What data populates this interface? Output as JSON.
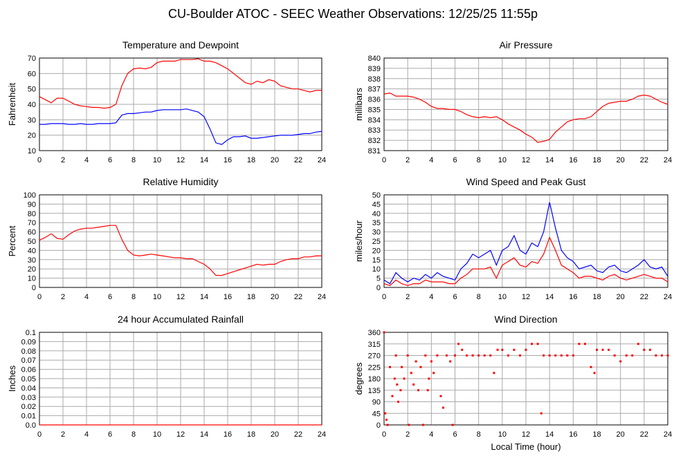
{
  "title": "CU-Boulder ATOC - SEEC Weather Observations: 12/25/25 11:55p",
  "chart_data": [
    {
      "type": "line",
      "title": "Temperature and Dewpoint",
      "ylabel": "Fahrenheit",
      "xlim": [
        0,
        24
      ],
      "xticks": [
        0,
        2,
        4,
        6,
        8,
        10,
        12,
        14,
        16,
        18,
        20,
        22,
        24
      ],
      "ylim": [
        10,
        70
      ],
      "yticks": [
        10,
        20,
        30,
        40,
        50,
        60,
        70
      ],
      "grid": true,
      "x": [
        0,
        0.5,
        1,
        1.5,
        2,
        2.5,
        3,
        3.5,
        4,
        4.5,
        5,
        5.5,
        6,
        6.5,
        7,
        7.5,
        8,
        8.5,
        9,
        9.5,
        10,
        10.5,
        11,
        11.5,
        12,
        12.5,
        13,
        13.5,
        14,
        14.5,
        15,
        15.5,
        16,
        16.5,
        17,
        17.5,
        18,
        18.5,
        19,
        19.5,
        20,
        20.5,
        21,
        21.5,
        22,
        22.5,
        23,
        23.5,
        24
      ],
      "series": [
        {
          "color": "#ff0000",
          "values": [
            45,
            43,
            41,
            44,
            44,
            42,
            40,
            39,
            38.5,
            38,
            38,
            37.5,
            38,
            40,
            52,
            60,
            63,
            63.5,
            63,
            64,
            67,
            68,
            68,
            68,
            69,
            69,
            69,
            69.5,
            68,
            68,
            67,
            65,
            63,
            60,
            57,
            54,
            53,
            55,
            54,
            56,
            55,
            52,
            51,
            50,
            50,
            49,
            48,
            49,
            49
          ]
        },
        {
          "color": "#0000ff",
          "values": [
            27,
            27,
            27.5,
            27.5,
            27.5,
            27,
            27,
            27.5,
            27,
            27,
            27.5,
            27.5,
            27.5,
            28,
            33,
            34,
            34,
            34.5,
            35,
            35,
            36,
            36.5,
            36.5,
            36.5,
            36.5,
            37,
            36,
            35,
            32,
            24,
            15,
            14,
            17,
            19,
            19,
            19.5,
            18,
            18,
            18.5,
            19,
            19.5,
            20,
            20,
            20,
            20.5,
            21,
            21,
            22,
            22.5
          ]
        }
      ]
    },
    {
      "type": "line",
      "title": "Air Pressure",
      "ylabel": "millibars",
      "xlim": [
        0,
        24
      ],
      "xticks": [
        0,
        2,
        4,
        6,
        8,
        10,
        12,
        14,
        16,
        18,
        20,
        22,
        24
      ],
      "ylim": [
        831,
        840
      ],
      "yticks": [
        831,
        832,
        833,
        834,
        835,
        836,
        837,
        838,
        839,
        840
      ],
      "grid": true,
      "x": [
        0,
        0.5,
        1,
        1.5,
        2,
        2.5,
        3,
        3.5,
        4,
        4.5,
        5,
        5.5,
        6,
        6.5,
        7,
        7.5,
        8,
        8.5,
        9,
        9.5,
        10,
        10.5,
        11,
        11.5,
        12,
        12.5,
        13,
        13.5,
        14,
        14.5,
        15,
        15.5,
        16,
        16.5,
        17,
        17.5,
        18,
        18.5,
        19,
        19.5,
        20,
        20.5,
        21,
        21.5,
        22,
        22.5,
        23,
        23.5,
        24
      ],
      "series": [
        {
          "color": "#ff0000",
          "values": [
            836.5,
            836.6,
            836.3,
            836.3,
            836.3,
            836.2,
            836,
            835.7,
            835.3,
            835.1,
            835.1,
            835,
            835,
            834.8,
            834.5,
            834.3,
            834.2,
            834.3,
            834.2,
            834.3,
            834,
            833.6,
            833.3,
            833,
            832.6,
            832.3,
            831.8,
            831.9,
            832.1,
            832.8,
            833.3,
            833.8,
            834,
            834.1,
            834.1,
            834.3,
            834.8,
            835.3,
            835.6,
            835.7,
            835.8,
            835.8,
            836,
            836.3,
            836.4,
            836.3,
            836,
            835.7,
            835.5
          ]
        }
      ]
    },
    {
      "type": "line",
      "title": "Relative Humidity",
      "ylabel": "Percent",
      "xlim": [
        0,
        24
      ],
      "xticks": [
        0,
        2,
        4,
        6,
        8,
        10,
        12,
        14,
        16,
        18,
        20,
        22,
        24
      ],
      "ylim": [
        0,
        100
      ],
      "yticks": [
        0,
        10,
        20,
        30,
        40,
        50,
        60,
        70,
        80,
        90,
        100
      ],
      "grid": true,
      "x": [
        0,
        0.5,
        1,
        1.5,
        2,
        2.5,
        3,
        3.5,
        4,
        4.5,
        5,
        5.5,
        6,
        6.5,
        7,
        7.5,
        8,
        8.5,
        9,
        9.5,
        10,
        10.5,
        11,
        11.5,
        12,
        12.5,
        13,
        13.5,
        14,
        14.5,
        15,
        15.5,
        16,
        16.5,
        17,
        17.5,
        18,
        18.5,
        19,
        19.5,
        20,
        20.5,
        21,
        21.5,
        22,
        22.5,
        23,
        23.5,
        24
      ],
      "series": [
        {
          "color": "#ff0000",
          "values": [
            51,
            54,
            58,
            53,
            52,
            57,
            61,
            63,
            64,
            64,
            65,
            66,
            67,
            67,
            52,
            40,
            35,
            34,
            35,
            36,
            35,
            34,
            33,
            32,
            32,
            31,
            31,
            28,
            25,
            20,
            13,
            13,
            15,
            17,
            19,
            21,
            23,
            25,
            24,
            25,
            25,
            28,
            30,
            31,
            31,
            33,
            33,
            34,
            34
          ]
        }
      ]
    },
    {
      "type": "line",
      "title": "Wind Speed and Peak Gust",
      "ylabel": "miles/hour",
      "xlim": [
        0,
        24
      ],
      "xticks": [
        0,
        2,
        4,
        6,
        8,
        10,
        12,
        14,
        16,
        18,
        20,
        22,
        24
      ],
      "ylim": [
        0,
        50
      ],
      "yticks": [
        0,
        5,
        10,
        15,
        20,
        25,
        30,
        35,
        40,
        45,
        50
      ],
      "grid": true,
      "x": [
        0,
        0.5,
        1,
        1.5,
        2,
        2.5,
        3,
        3.5,
        4,
        4.5,
        5,
        5.5,
        6,
        6.5,
        7,
        7.5,
        8,
        8.5,
        9,
        9.5,
        10,
        10.5,
        11,
        11.5,
        12,
        12.5,
        13,
        13.5,
        14,
        14.5,
        15,
        15.5,
        16,
        16.5,
        17,
        17.5,
        18,
        18.5,
        19,
        19.5,
        20,
        20.5,
        21,
        21.5,
        22,
        22.5,
        23,
        23.5,
        24
      ],
      "series": [
        {
          "color": "#0000ff",
          "values": [
            4,
            2,
            8,
            5,
            3,
            5,
            4,
            7,
            5,
            8,
            6,
            5,
            4,
            10,
            13,
            18,
            16,
            18,
            20,
            12,
            20,
            22,
            28,
            20,
            18,
            24,
            22,
            30,
            46,
            32,
            20,
            16,
            14,
            10,
            11,
            12,
            9,
            8,
            11,
            12,
            9,
            8,
            10,
            12,
            15,
            11,
            10,
            11,
            6
          ]
        },
        {
          "color": "#ff0000",
          "values": [
            2,
            1,
            4,
            2,
            1,
            2,
            2,
            4,
            3,
            3,
            3,
            2,
            2,
            5,
            7,
            10,
            10,
            10,
            11,
            5,
            12,
            14,
            16,
            12,
            11,
            14,
            13,
            18,
            27,
            20,
            12,
            10,
            8,
            5,
            6,
            6,
            5,
            4,
            6,
            7,
            5,
            4,
            5,
            6,
            7,
            6,
            5,
            5,
            3
          ]
        }
      ]
    },
    {
      "type": "line",
      "title": "24 hour Accumulated Rainfall",
      "ylabel": "Inches",
      "xlim": [
        0,
        24
      ],
      "xticks": [
        0,
        2,
        4,
        6,
        8,
        10,
        12,
        14,
        16,
        18,
        20,
        22,
        24
      ],
      "ylim": [
        0,
        0.1
      ],
      "yticks": [
        {
          "value": 0,
          "label": "0.0"
        },
        0.01,
        0.02,
        0.03,
        0.04,
        0.05,
        0.06,
        0.07,
        0.08,
        0.09,
        0.1
      ],
      "grid": true,
      "x": [
        0,
        24
      ],
      "series": [
        {
          "color": "#ff0000",
          "values": [
            0,
            0
          ]
        }
      ]
    },
    {
      "type": "scatter",
      "title": "Wind Direction",
      "ylabel": "degrees",
      "xlabel": "Local Time (hour)",
      "xlim": [
        0,
        24
      ],
      "xticks": [
        0,
        2,
        4,
        6,
        8,
        10,
        12,
        14,
        16,
        18,
        20,
        22,
        24
      ],
      "ylim": [
        0,
        360
      ],
      "yticks": [
        0,
        45,
        90,
        135,
        180,
        225,
        270,
        315,
        360
      ],
      "grid": true,
      "color": "#ff0000",
      "x": [
        0,
        0.1,
        0.2,
        0.3,
        0.5,
        0.7,
        0.9,
        1.0,
        1.1,
        1.2,
        1.4,
        1.5,
        1.7,
        2.0,
        2.1,
        2.3,
        2.5,
        2.7,
        2.9,
        3.1,
        3.3,
        3.5,
        3.7,
        3.8,
        4.0,
        4.2,
        4.5,
        4.8,
        5.0,
        5.3,
        5.6,
        5.8,
        6.0,
        6.3,
        6.6,
        7.0,
        7.5,
        8.0,
        8.5,
        9.0,
        9.3,
        9.6,
        10.0,
        10.5,
        11,
        11.5,
        12,
        12.5,
        13,
        13.3,
        13.5,
        14,
        14.5,
        15,
        15.5,
        16,
        16.5,
        17,
        17.5,
        17.8,
        18,
        18.5,
        19,
        19.5,
        20,
        20.5,
        21,
        21.5,
        22,
        22.5,
        23,
        23.5,
        24
      ],
      "values": [
        360,
        45,
        20,
        0,
        225,
        112,
        180,
        270,
        157,
        90,
        135,
        225,
        180,
        270,
        0,
        202,
        157,
        247,
        135,
        225,
        0,
        270,
        135,
        180,
        247,
        202,
        270,
        112,
        67,
        270,
        247,
        0,
        270,
        315,
        292,
        270,
        270,
        270,
        270,
        270,
        202,
        292,
        292,
        270,
        292,
        270,
        292,
        315,
        315,
        45,
        270,
        270,
        270,
        270,
        270,
        270,
        315,
        315,
        225,
        202,
        292,
        292,
        292,
        270,
        247,
        270,
        270,
        315,
        292,
        292,
        270,
        270,
        270
      ]
    }
  ]
}
